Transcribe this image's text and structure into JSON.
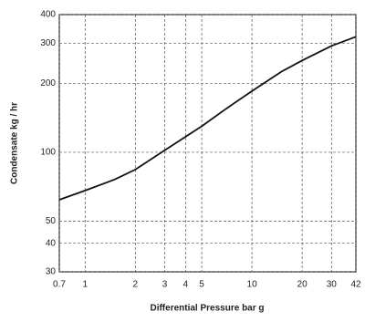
{
  "chart_data": {
    "type": "line",
    "xlabel": "Differential Pressure bar g",
    "ylabel": "Condensate kg / hr",
    "xscale": "log",
    "yscale": "log",
    "grid": true,
    "xlim": [
      0.7,
      42
    ],
    "ylim": [
      30,
      400
    ],
    "xticks": [
      0.7,
      1,
      2,
      3,
      4,
      5,
      10,
      20,
      30,
      42
    ],
    "yticks": [
      30,
      40,
      50,
      100,
      200,
      300,
      400
    ],
    "series": [
      {
        "color": "#111111",
        "x": [
          0.7,
          1,
          1.5,
          2,
          3,
          5,
          7,
          10,
          15,
          20,
          30,
          42
        ],
        "values": [
          62,
          68,
          76,
          84,
          102,
          130,
          155,
          185,
          225,
          252,
          292,
          320
        ]
      }
    ]
  }
}
